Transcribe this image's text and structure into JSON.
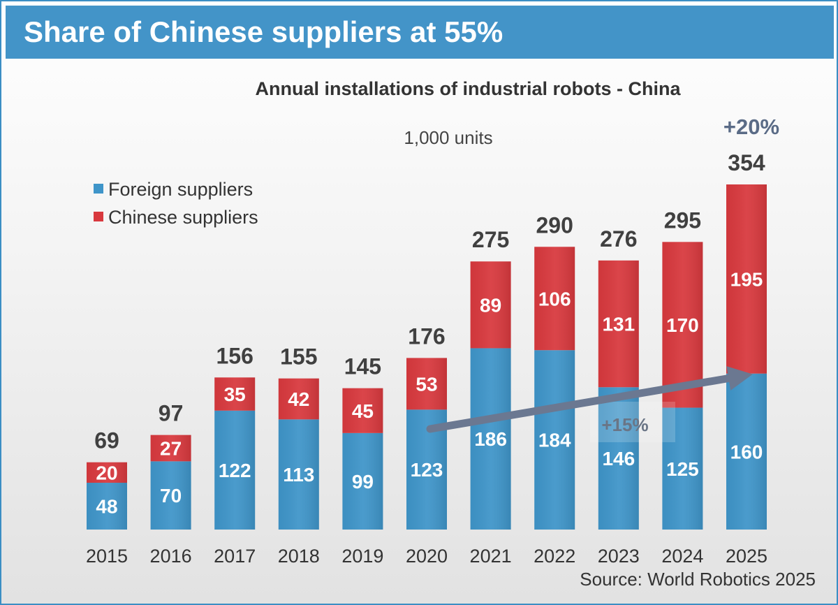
{
  "header": {
    "title": "Share of Chinese suppliers at 55%"
  },
  "chart_data": {
    "type": "bar",
    "stacked": true,
    "title": "Annual installations of industrial robots - China",
    "units": "1,000 units",
    "categories": [
      "2015",
      "2016",
      "2017",
      "2018",
      "2019",
      "2020",
      "2021",
      "2022",
      "2023",
      "2024",
      "2025"
    ],
    "series": [
      {
        "name": "Foreign suppliers",
        "color": "#3f95c9",
        "values": [
          48,
          70,
          122,
          113,
          99,
          123,
          186,
          184,
          146,
          125,
          160
        ]
      },
      {
        "name": "Chinese suppliers",
        "color": "#d8393e",
        "values": [
          20,
          27,
          35,
          42,
          45,
          53,
          89,
          106,
          131,
          170,
          195
        ]
      }
    ],
    "totals": [
      69,
      97,
      156,
      155,
      145,
      176,
      275,
      290,
      276,
      295,
      354
    ],
    "legend": "top-left",
    "grid": false,
    "ylim": [
      0,
      354
    ],
    "annotations": [
      {
        "text": "+20%",
        "near": "2025"
      },
      {
        "text": "+15%",
        "from": "2020",
        "to": "2025"
      }
    ],
    "source": "Source: World Robotics 2025"
  }
}
